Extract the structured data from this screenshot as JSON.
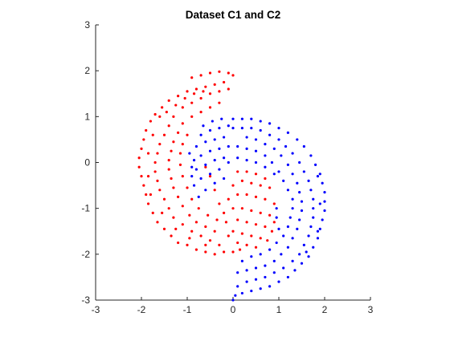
{
  "chart_data": {
    "type": "scatter",
    "title": "Dataset C1 and C2",
    "xlabel": "",
    "ylabel": "",
    "xlim": [
      -3,
      3
    ],
    "ylim": [
      -3,
      3
    ],
    "xticks": [
      -3,
      -2,
      -1,
      0,
      1,
      2,
      3
    ],
    "yticks": [
      -3,
      -2,
      -1,
      0,
      1,
      2,
      3
    ],
    "grid": false,
    "legend": "none",
    "series": [
      {
        "color": "#ff0000",
        "description_shape": "C-shaped half ring opening right, outer arc centred near (-0.25,0) radius ~2, inner arc radius ~1, plus lower-right filled lobe",
        "points": [
          [
            -0.9,
            1.85
          ],
          [
            -0.7,
            1.9
          ],
          [
            -0.5,
            1.95
          ],
          [
            -0.3,
            1.98
          ],
          [
            -0.1,
            1.95
          ],
          [
            0.0,
            1.9
          ],
          [
            -0.2,
            1.75
          ],
          [
            -0.4,
            1.7
          ],
          [
            -0.6,
            1.65
          ],
          [
            -0.8,
            1.6
          ],
          [
            -1.0,
            1.55
          ],
          [
            -1.2,
            1.45
          ],
          [
            -1.4,
            1.35
          ],
          [
            -1.55,
            1.2
          ],
          [
            -1.7,
            1.05
          ],
          [
            -1.8,
            0.9
          ],
          [
            -1.9,
            0.7
          ],
          [
            -1.95,
            0.5
          ],
          [
            -2.0,
            0.3
          ],
          [
            -2.05,
            0.1
          ],
          [
            -2.05,
            -0.1
          ],
          [
            -2.0,
            -0.3
          ],
          [
            -1.95,
            -0.5
          ],
          [
            -1.9,
            -0.7
          ],
          [
            -1.85,
            -0.9
          ],
          [
            -1.75,
            -1.1
          ],
          [
            -1.65,
            -1.3
          ],
          [
            -1.5,
            -1.45
          ],
          [
            -1.35,
            -1.6
          ],
          [
            -1.2,
            -1.75
          ],
          [
            -1.0,
            -1.8
          ],
          [
            -0.8,
            -1.9
          ],
          [
            -0.6,
            -1.95
          ],
          [
            -0.4,
            -2.0
          ],
          [
            -0.2,
            -1.95
          ],
          [
            0.0,
            -1.95
          ],
          [
            0.15,
            -1.9
          ],
          [
            -0.5,
            1.5
          ],
          [
            -0.7,
            1.4
          ],
          [
            -0.9,
            1.3
          ],
          [
            -1.1,
            1.2
          ],
          [
            -1.3,
            1.0
          ],
          [
            -1.4,
            0.8
          ],
          [
            -1.5,
            0.6
          ],
          [
            -1.6,
            0.4
          ],
          [
            -1.65,
            0.2
          ],
          [
            -1.7,
            0.0
          ],
          [
            -1.7,
            -0.2
          ],
          [
            -1.65,
            -0.4
          ],
          [
            -1.6,
            -0.6
          ],
          [
            -1.5,
            -0.8
          ],
          [
            -1.4,
            -1.0
          ],
          [
            -1.3,
            -1.2
          ],
          [
            -1.1,
            -1.35
          ],
          [
            -0.9,
            -1.5
          ],
          [
            -0.7,
            -1.6
          ],
          [
            -0.5,
            -1.7
          ],
          [
            -0.3,
            1.55
          ],
          [
            -0.1,
            1.6
          ],
          [
            -0.3,
            1.3
          ],
          [
            -0.5,
            1.2
          ],
          [
            -0.7,
            1.1
          ],
          [
            -0.9,
            1.0
          ],
          [
            -1.1,
            0.85
          ],
          [
            -1.2,
            0.65
          ],
          [
            -1.3,
            0.45
          ],
          [
            -1.35,
            0.25
          ],
          [
            -1.4,
            0.05
          ],
          [
            -1.4,
            -0.15
          ],
          [
            -1.35,
            -0.35
          ],
          [
            -1.3,
            -0.55
          ],
          [
            -1.2,
            -0.75
          ],
          [
            -1.1,
            -0.95
          ],
          [
            -0.95,
            -1.15
          ],
          [
            -0.8,
            -1.3
          ],
          [
            -0.6,
            -1.4
          ],
          [
            -0.4,
            -1.5
          ],
          [
            -1.6,
            1.0
          ],
          [
            -1.75,
            0.6
          ],
          [
            -1.85,
            0.2
          ],
          [
            -1.85,
            -0.3
          ],
          [
            -1.8,
            -0.7
          ],
          [
            -1.55,
            -1.1
          ],
          [
            -1.25,
            -1.45
          ],
          [
            -0.95,
            -1.65
          ],
          [
            -0.6,
            -1.8
          ],
          [
            -0.3,
            -1.8
          ],
          [
            -1.05,
            1.4
          ],
          [
            -0.85,
            1.5
          ],
          [
            -0.65,
            1.55
          ],
          [
            -1.25,
            1.25
          ],
          [
            -1.45,
            1.1
          ],
          [
            -1.0,
            0.6
          ],
          [
            -1.1,
            0.4
          ],
          [
            -1.15,
            0.2
          ],
          [
            -1.15,
            -0.05
          ],
          [
            -1.1,
            -0.3
          ],
          [
            -1.0,
            -0.55
          ],
          [
            -0.9,
            -0.8
          ],
          [
            -0.75,
            -1.0
          ],
          [
            -0.55,
            -1.15
          ],
          [
            -0.35,
            -1.25
          ],
          [
            -0.15,
            -1.3
          ],
          [
            0.1,
            -0.2
          ],
          [
            0.3,
            -0.2
          ],
          [
            0.5,
            -0.25
          ],
          [
            0.7,
            -0.35
          ],
          [
            0.2,
            -0.4
          ],
          [
            0.4,
            -0.45
          ],
          [
            0.6,
            -0.5
          ],
          [
            0.8,
            -0.55
          ],
          [
            0.0,
            -0.5
          ],
          [
            0.1,
            -0.7
          ],
          [
            0.3,
            -0.7
          ],
          [
            0.5,
            -0.75
          ],
          [
            0.7,
            -0.8
          ],
          [
            0.9,
            -0.9
          ],
          [
            -0.1,
            -0.8
          ],
          [
            0.0,
            -1.0
          ],
          [
            0.2,
            -1.0
          ],
          [
            0.4,
            -1.05
          ],
          [
            0.6,
            -1.1
          ],
          [
            0.8,
            -1.15
          ],
          [
            0.9,
            -1.3
          ],
          [
            -0.2,
            -1.1
          ],
          [
            0.1,
            -1.25
          ],
          [
            0.3,
            -1.3
          ],
          [
            0.5,
            -1.35
          ],
          [
            0.7,
            -1.4
          ],
          [
            0.85,
            -1.5
          ],
          [
            0.0,
            -1.5
          ],
          [
            0.2,
            -1.55
          ],
          [
            0.4,
            -1.6
          ],
          [
            0.6,
            -1.65
          ],
          [
            0.75,
            -1.7
          ],
          [
            0.1,
            -1.75
          ],
          [
            0.3,
            -1.8
          ],
          [
            0.5,
            -1.85
          ],
          [
            -0.1,
            -1.6
          ],
          [
            -0.3,
            -0.9
          ],
          [
            -0.4,
            -0.6
          ],
          [
            -0.5,
            -0.3
          ],
          [
            -0.6,
            -0.1
          ]
        ]
      },
      {
        "color": "#0000ff",
        "description_shape": "Reverse C-shaped half ring opening left, outer arc centred near (0.25,-1) radius ~2, inner arc radius ~1, plus upper-left filled lobe",
        "points": [
          [
            0.0,
            0.95
          ],
          [
            0.2,
            0.95
          ],
          [
            0.4,
            0.95
          ],
          [
            0.6,
            0.9
          ],
          [
            0.8,
            0.85
          ],
          [
            1.0,
            0.75
          ],
          [
            1.2,
            0.65
          ],
          [
            1.4,
            0.5
          ],
          [
            1.55,
            0.35
          ],
          [
            1.7,
            0.15
          ],
          [
            1.8,
            -0.05
          ],
          [
            1.9,
            -0.25
          ],
          [
            1.95,
            -0.45
          ],
          [
            2.0,
            -0.65
          ],
          [
            2.0,
            -0.85
          ],
          [
            2.0,
            -1.05
          ],
          [
            1.95,
            -1.25
          ],
          [
            1.9,
            -1.45
          ],
          [
            1.85,
            -1.65
          ],
          [
            1.75,
            -1.85
          ],
          [
            1.65,
            -2.05
          ],
          [
            1.5,
            -2.2
          ],
          [
            1.35,
            -2.35
          ],
          [
            1.2,
            -2.5
          ],
          [
            1.0,
            -2.6
          ],
          [
            0.8,
            -2.7
          ],
          [
            0.6,
            -2.75
          ],
          [
            0.4,
            -2.8
          ],
          [
            0.2,
            -2.85
          ],
          [
            0.05,
            -2.9
          ],
          [
            0.0,
            -3.0
          ],
          [
            0.1,
            -2.7
          ],
          [
            0.3,
            -2.6
          ],
          [
            0.5,
            -2.55
          ],
          [
            0.7,
            -2.5
          ],
          [
            0.9,
            -2.4
          ],
          [
            1.1,
            -2.3
          ],
          [
            1.3,
            -2.15
          ],
          [
            1.45,
            -2.0
          ],
          [
            1.55,
            -1.8
          ],
          [
            1.65,
            -1.6
          ],
          [
            1.7,
            -1.4
          ],
          [
            1.75,
            -1.2
          ],
          [
            1.75,
            -1.0
          ],
          [
            1.75,
            -0.8
          ],
          [
            1.7,
            -0.6
          ],
          [
            1.65,
            -0.4
          ],
          [
            1.55,
            -0.2
          ],
          [
            1.45,
            0.0
          ],
          [
            1.3,
            0.2
          ],
          [
            1.15,
            0.35
          ],
          [
            1.0,
            0.5
          ],
          [
            0.8,
            0.6
          ],
          [
            0.6,
            0.7
          ],
          [
            0.4,
            0.75
          ],
          [
            0.2,
            0.75
          ],
          [
            0.0,
            0.75
          ],
          [
            0.3,
            0.55
          ],
          [
            0.5,
            0.5
          ],
          [
            0.7,
            0.4
          ],
          [
            0.9,
            0.3
          ],
          [
            1.05,
            0.15
          ],
          [
            1.2,
            -0.05
          ],
          [
            1.3,
            -0.25
          ],
          [
            1.4,
            -0.45
          ],
          [
            1.45,
            -0.65
          ],
          [
            1.5,
            -0.85
          ],
          [
            1.5,
            -1.05
          ],
          [
            1.45,
            -1.25
          ],
          [
            1.4,
            -1.45
          ],
          [
            1.3,
            -1.65
          ],
          [
            1.2,
            -1.85
          ],
          [
            1.05,
            -2.0
          ],
          [
            0.9,
            -2.15
          ],
          [
            0.7,
            -2.25
          ],
          [
            0.5,
            -2.3
          ],
          [
            0.3,
            -2.35
          ],
          [
            0.1,
            -2.4
          ],
          [
            0.2,
            -2.15
          ],
          [
            0.4,
            -2.05
          ],
          [
            0.6,
            -2.0
          ],
          [
            0.8,
            -1.9
          ],
          [
            0.95,
            -1.75
          ],
          [
            1.1,
            -1.6
          ],
          [
            1.2,
            -1.4
          ],
          [
            1.25,
            -1.2
          ],
          [
            1.3,
            -1.0
          ],
          [
            1.3,
            -0.8
          ],
          [
            1.2,
            -0.6
          ],
          [
            1.1,
            -0.4
          ],
          [
            1.0,
            -0.2
          ],
          [
            0.85,
            0.0
          ],
          [
            0.7,
            0.15
          ],
          [
            0.5,
            0.25
          ],
          [
            0.3,
            0.3
          ],
          [
            0.1,
            0.35
          ],
          [
            1.85,
            -0.3
          ],
          [
            1.9,
            -0.9
          ],
          [
            1.85,
            -1.5
          ],
          [
            1.6,
            -1.95
          ],
          [
            -0.1,
            0.8
          ],
          [
            -0.3,
            0.75
          ],
          [
            -0.5,
            0.7
          ],
          [
            -0.7,
            0.6
          ],
          [
            -0.2,
            0.55
          ],
          [
            -0.4,
            0.5
          ],
          [
            -0.6,
            0.45
          ],
          [
            -0.8,
            0.35
          ],
          [
            -0.1,
            0.35
          ],
          [
            -0.3,
            0.3
          ],
          [
            -0.5,
            0.25
          ],
          [
            -0.7,
            0.15
          ],
          [
            -0.85,
            0.05
          ],
          [
            -0.2,
            0.1
          ],
          [
            -0.4,
            0.05
          ],
          [
            -0.6,
            -0.05
          ],
          [
            -0.8,
            -0.15
          ],
          [
            -0.9,
            -0.3
          ],
          [
            -0.3,
            -0.15
          ],
          [
            -0.5,
            -0.25
          ],
          [
            -0.7,
            -0.35
          ],
          [
            -0.85,
            -0.5
          ],
          [
            -0.2,
            -0.35
          ],
          [
            -0.4,
            -0.45
          ],
          [
            -0.6,
            -0.6
          ],
          [
            -0.75,
            -0.75
          ],
          [
            -0.1,
            0.0
          ],
          [
            0.1,
            0.1
          ],
          [
            0.3,
            0.05
          ],
          [
            0.5,
            0.0
          ],
          [
            0.7,
            -0.1
          ],
          [
            0.9,
            -0.25
          ],
          [
            -0.95,
            0.2
          ],
          [
            -0.9,
            -0.1
          ],
          [
            -0.65,
            0.8
          ],
          [
            -0.45,
            0.9
          ],
          [
            -0.25,
            0.95
          ],
          [
            0.95,
            -1.0
          ],
          [
            0.95,
            -1.2
          ],
          [
            1.0,
            -1.45
          ]
        ]
      }
    ]
  }
}
